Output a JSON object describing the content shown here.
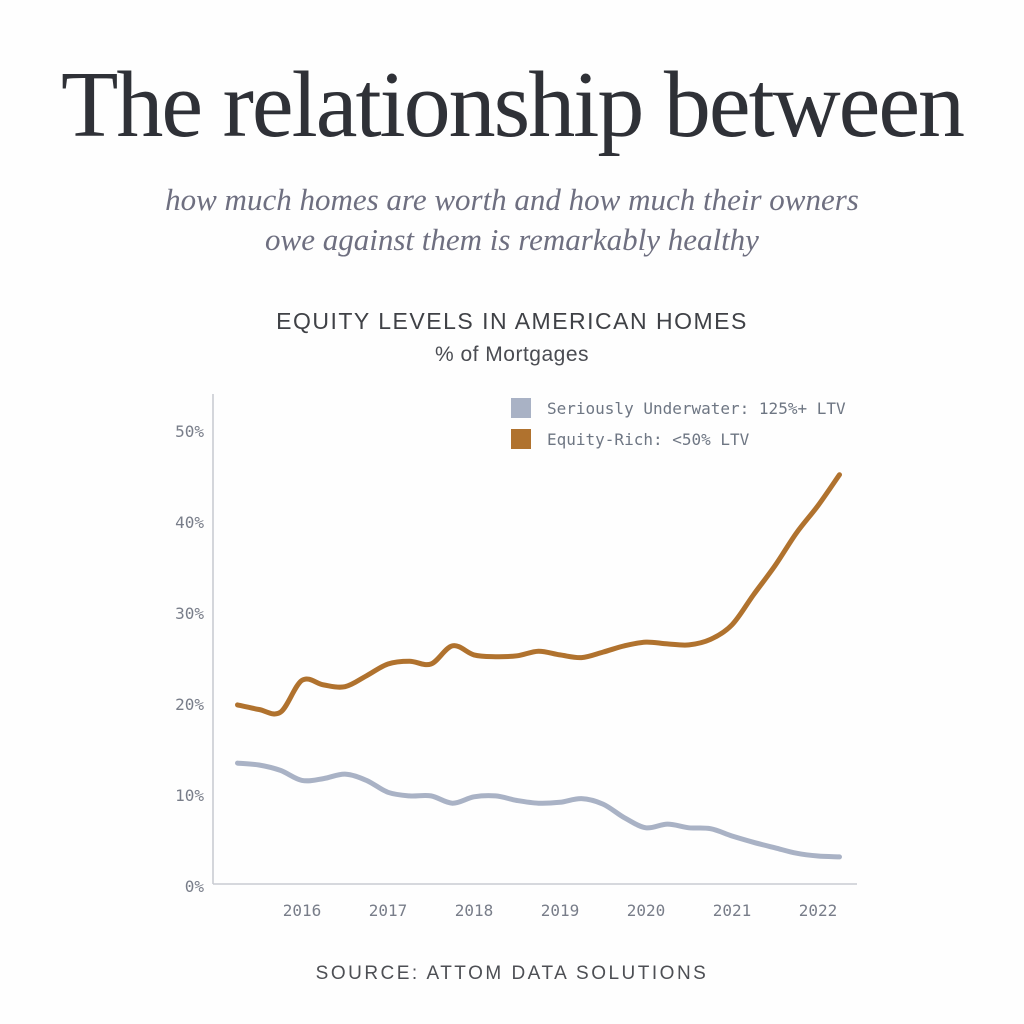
{
  "page": {
    "title": "The relationship between",
    "subtitle_line1": "how much homes are worth and how much their owners",
    "subtitle_line2": "owe against them is remarkably healthy",
    "source": "SOURCE: ATTOM DATA SOLUTIONS"
  },
  "chart_data": {
    "type": "line",
    "title": "EQUITY LEVELS IN AMERICAN HOMES",
    "subtitle": "% of Mortgages",
    "grid": false,
    "legend_position": "top-right",
    "x": [
      2015.25,
      2015.5,
      2015.75,
      2016.0,
      2016.25,
      2016.5,
      2016.75,
      2017.0,
      2017.25,
      2017.5,
      2017.75,
      2018.0,
      2018.25,
      2018.5,
      2018.75,
      2019.0,
      2019.25,
      2019.5,
      2019.75,
      2020.0,
      2020.25,
      2020.5,
      2020.75,
      2021.0,
      2021.25,
      2021.5,
      2021.75,
      2022.0,
      2022.25
    ],
    "x_unit": "year, quarterly points",
    "x_ticks": [
      {
        "v": 2016,
        "label": "2016"
      },
      {
        "v": 2017,
        "label": "2017"
      },
      {
        "v": 2018,
        "label": "2018"
      },
      {
        "v": 2019,
        "label": "2019"
      },
      {
        "v": 2020,
        "label": "2020"
      },
      {
        "v": 2021,
        "label": "2021"
      },
      {
        "v": 2022,
        "label": "2022"
      }
    ],
    "y_ticks": [
      {
        "v": 0,
        "label": "0%"
      },
      {
        "v": 10,
        "label": "10%"
      },
      {
        "v": 20,
        "label": "20%"
      },
      {
        "v": 30,
        "label": "30%"
      },
      {
        "v": 40,
        "label": "40%"
      },
      {
        "v": 50,
        "label": "50%"
      }
    ],
    "ylim": [
      0,
      53
    ],
    "series": [
      {
        "name": "Seriously Underwater: 125%+ LTV",
        "color": "#a9b2c5",
        "values": [
          13.5,
          13.3,
          12.7,
          11.6,
          11.8,
          12.3,
          11.6,
          10.3,
          9.9,
          9.9,
          9.1,
          9.8,
          9.9,
          9.4,
          9.1,
          9.2,
          9.6,
          9.0,
          7.5,
          6.4,
          6.8,
          6.4,
          6.3,
          5.5,
          4.8,
          4.2,
          3.6,
          3.3,
          3.2
        ]
      },
      {
        "name": "Equity-Rich: <50% LTV",
        "color": "#b0722e",
        "values": [
          19.9,
          19.4,
          19.1,
          22.6,
          22.1,
          21.9,
          23.1,
          24.4,
          24.7,
          24.4,
          26.4,
          25.4,
          25.2,
          25.3,
          25.8,
          25.4,
          25.1,
          25.7,
          26.4,
          26.8,
          26.6,
          26.5,
          27.1,
          28.7,
          32.0,
          35.2,
          38.8,
          41.8,
          45.2
        ]
      }
    ],
    "axis_color": "#c9ccd2",
    "tick_color": "#787d89"
  }
}
